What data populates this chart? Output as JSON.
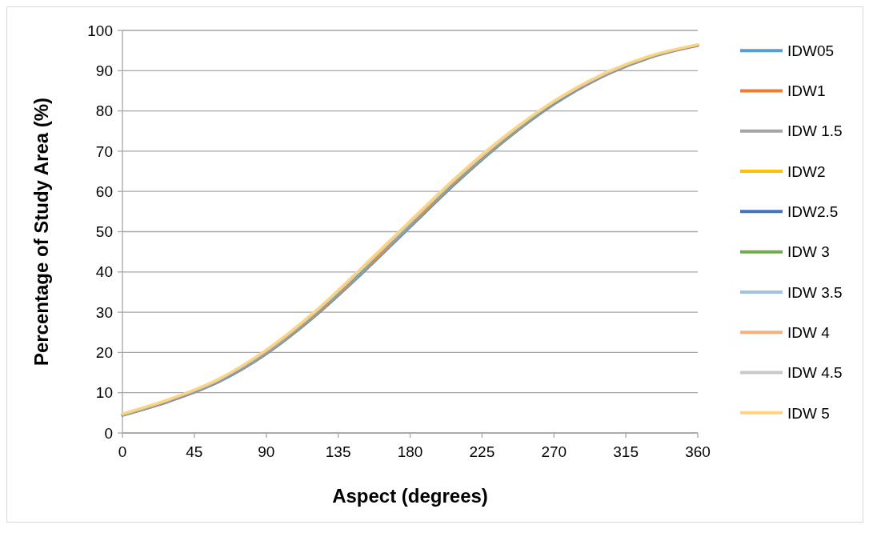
{
  "chart_data": {
    "type": "line",
    "xlabel": "Aspect (degrees)",
    "ylabel": "Percentage of Study Area (%)",
    "x": [
      0,
      30,
      60,
      90,
      120,
      150,
      180,
      210,
      240,
      270,
      300,
      330,
      360
    ],
    "xlim": [
      0,
      360
    ],
    "xticks": [
      0,
      45,
      90,
      135,
      180,
      225,
      270,
      315,
      360
    ],
    "ylim": [
      0,
      100
    ],
    "yticks": [
      0,
      10,
      20,
      30,
      40,
      50,
      60,
      70,
      80,
      90,
      100
    ],
    "grid": "y",
    "legend": "right",
    "marker": "none",
    "line_style": "solid",
    "series": [
      {
        "name": "IDW05",
        "color": "#5b9bd5",
        "values": [
          4.3,
          7.9,
          12.6,
          19.6,
          28.8,
          39.6,
          51.1,
          62.5,
          72.8,
          81.6,
          88.4,
          93.2,
          96.2
        ]
      },
      {
        "name": "IDW1",
        "color": "#ed7d31",
        "values": [
          4.4,
          8.0,
          12.8,
          19.9,
          29.1,
          40.0,
          51.5,
          62.9,
          73.1,
          81.8,
          88.5,
          93.3,
          96.2
        ]
      },
      {
        "name": "IDW 1.5",
        "color": "#a5a5a5",
        "values": [
          4.5,
          8.1,
          12.9,
          20.0,
          29.3,
          40.2,
          51.7,
          63.1,
          73.2,
          81.9,
          88.6,
          93.3,
          96.3
        ]
      },
      {
        "name": "IDW2",
        "color": "#ffc000",
        "values": [
          4.5,
          8.2,
          13.0,
          20.1,
          29.4,
          40.4,
          51.9,
          63.2,
          73.3,
          82.0,
          88.7,
          93.4,
          96.3
        ]
      },
      {
        "name": "IDW2.5",
        "color": "#4472c4",
        "values": [
          4.6,
          8.2,
          13.0,
          20.2,
          29.5,
          40.5,
          52.0,
          63.3,
          73.4,
          82.0,
          88.7,
          93.4,
          96.3
        ]
      },
      {
        "name": "IDW 3",
        "color": "#70ad47",
        "values": [
          4.6,
          8.3,
          13.1,
          20.3,
          29.6,
          40.6,
          52.1,
          63.4,
          73.5,
          82.1,
          88.8,
          93.4,
          96.4
        ]
      },
      {
        "name": "IDW 3.5",
        "color": "#9dc3e6",
        "values": [
          4.6,
          8.3,
          13.1,
          20.3,
          29.7,
          40.7,
          52.2,
          63.5,
          73.6,
          82.2,
          88.8,
          93.5,
          96.4
        ]
      },
      {
        "name": "IDW 4",
        "color": "#f4b183",
        "values": [
          4.7,
          8.4,
          13.2,
          20.4,
          29.8,
          40.8,
          52.3,
          63.6,
          73.7,
          82.3,
          88.9,
          93.5,
          96.4
        ]
      },
      {
        "name": "IDW 4.5",
        "color": "#c9c9c9",
        "values": [
          4.7,
          8.4,
          13.2,
          20.5,
          29.9,
          40.9,
          52.4,
          63.7,
          73.8,
          82.3,
          88.9,
          93.6,
          96.5
        ]
      },
      {
        "name": "IDW 5",
        "color": "#ffd47f",
        "values": [
          4.8,
          8.5,
          13.4,
          20.7,
          30.1,
          41.2,
          52.7,
          64.0,
          74.0,
          82.5,
          89.1,
          93.7,
          96.5
        ]
      }
    ]
  }
}
